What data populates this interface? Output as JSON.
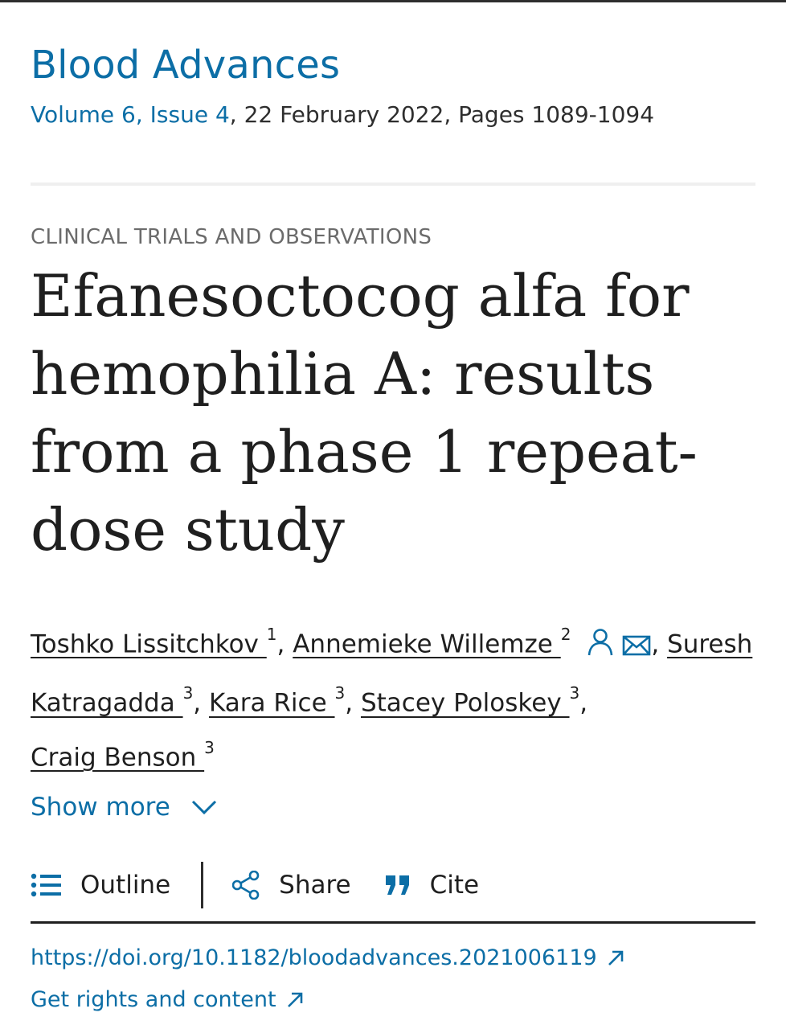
{
  "journal": {
    "name": "Blood Advances",
    "volume_issue": "Volume 6, Issue 4",
    "date_pages": ", 22 February 2022, Pages 1089-1094"
  },
  "article": {
    "category": "CLINICAL TRIALS AND OBSERVATIONS",
    "title": "Efanesoctocog alfa for hemophilia A: results from a phase 1 repeat-dose study"
  },
  "authors": [
    {
      "name": "Toshko Lissitchkov ",
      "sup": "1"
    },
    {
      "name": "Annemieke Willemze ",
      "sup": "2"
    },
    {
      "name": "Suresh Katragadda ",
      "sup": "3"
    },
    {
      "name": "Kara Rice ",
      "sup": "3"
    },
    {
      "name": "Stacey Poloskey ",
      "sup": "3"
    },
    {
      "name": "Craig Benson ",
      "sup": "3"
    }
  ],
  "author_icons": {
    "person": "person-icon",
    "mail": "mail-icon"
  },
  "show_more": "Show more",
  "toolbar": {
    "outline": "Outline",
    "share": "Share",
    "cite": "Cite"
  },
  "links": {
    "doi": "https://doi.org/10.1182/bloodadvances.2021006119",
    "rights": "Get rights and content"
  },
  "colors": {
    "link": "#0c6ea6",
    "text": "#1f1f1f",
    "muted": "#6b6b6b"
  }
}
